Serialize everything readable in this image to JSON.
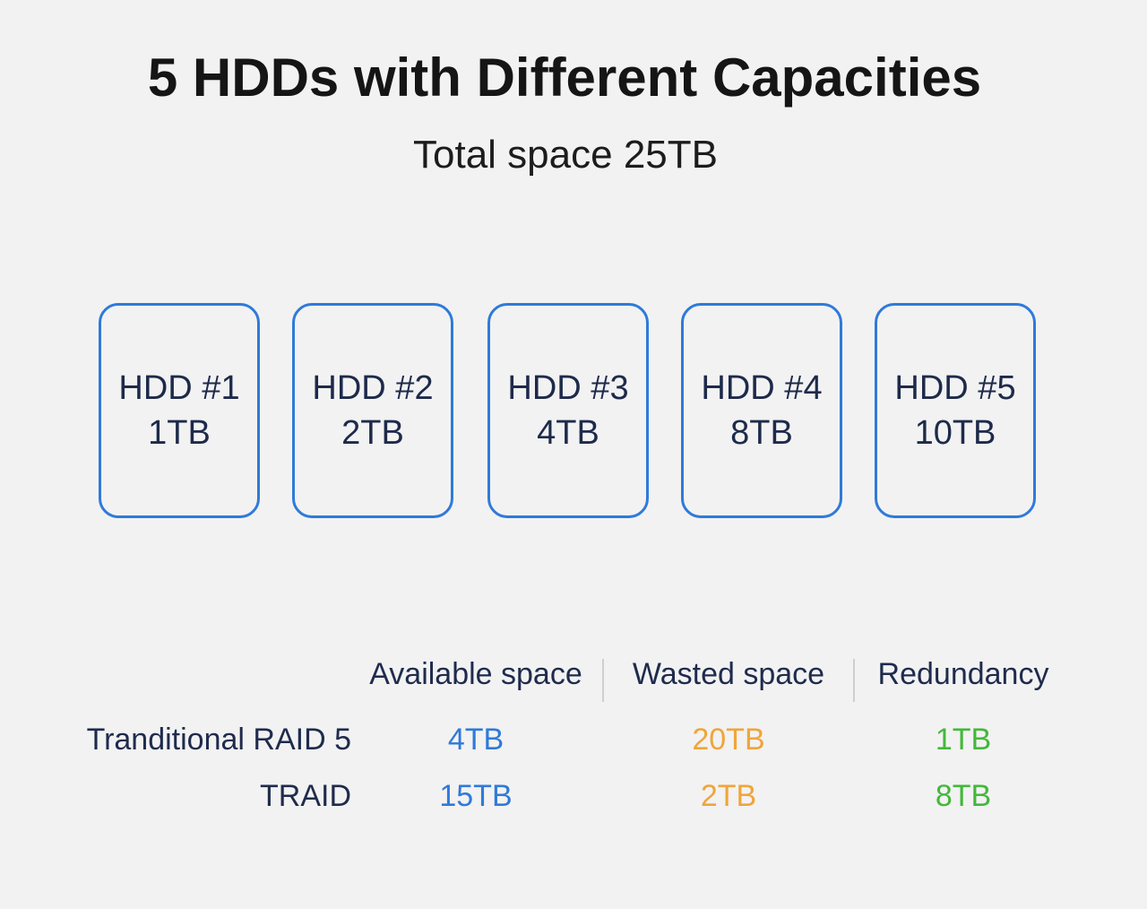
{
  "title": "5 HDDs with Different Capacities",
  "subtitle": "Total space 25TB",
  "hdds": [
    {
      "name": "HDD #1",
      "capacity": "1TB"
    },
    {
      "name": "HDD #2",
      "capacity": "2TB"
    },
    {
      "name": "HDD #3",
      "capacity": "4TB"
    },
    {
      "name": "HDD #4",
      "capacity": "8TB"
    },
    {
      "name": "HDD #5",
      "capacity": "10TB"
    }
  ],
  "table": {
    "columns": [
      "Available space",
      "Wasted space",
      "Redundancy"
    ],
    "rows": [
      {
        "label": "Tranditional RAID 5",
        "values": [
          "4TB",
          "20TB",
          "1TB"
        ]
      },
      {
        "label": "TRAID",
        "values": [
          "15TB",
          "2TB",
          "8TB"
        ]
      }
    ]
  },
  "colors": {
    "box_border": "#2f7ad9",
    "available": "#2f7ad9",
    "wasted": "#f0a53a",
    "redundancy": "#43b83a"
  }
}
